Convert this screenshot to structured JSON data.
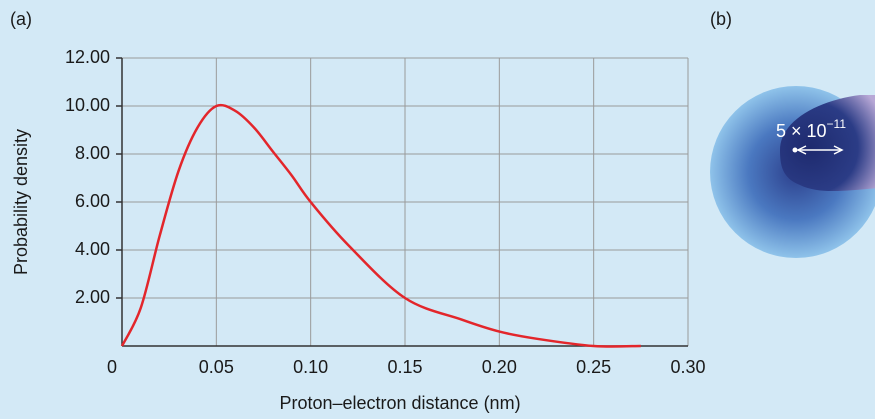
{
  "chart_data": {
    "type": "line",
    "panel_label": "(a)",
    "xlabel": "Proton–electron distance (nm)",
    "ylabel": "Probability density",
    "x": [
      0,
      0.01,
      0.02,
      0.03,
      0.04,
      0.05,
      0.06,
      0.07,
      0.08,
      0.09,
      0.1,
      0.12,
      0.15,
      0.18,
      0.2,
      0.22,
      0.25,
      0.275
    ],
    "series": [
      {
        "color": "#e3262b",
        "values": [
          0,
          1.6,
          4.6,
          7.3,
          9.1,
          10.0,
          9.8,
          9.1,
          8.1,
          7.1,
          6.0,
          4.2,
          2.0,
          1.1,
          0.6,
          0.3,
          0.0,
          0.0
        ]
      }
    ],
    "xlim": [
      0,
      0.3
    ],
    "ylim": [
      0,
      12
    ],
    "xticks": [
      0,
      0.05,
      {
        "value": 0.1,
        "label": "0.10"
      },
      0.15,
      {
        "value": 0.2,
        "label": "0.20"
      },
      0.25,
      {
        "value": 0.3,
        "label": "0.30"
      }
    ],
    "yticks": [
      {
        "value": 2,
        "label": "2.00"
      },
      {
        "value": 4,
        "label": "4.00"
      },
      {
        "value": 6,
        "label": "6.00"
      },
      {
        "value": 8,
        "label": "8.00"
      },
      {
        "value": 10,
        "label": "10.00"
      },
      {
        "value": 12,
        "label": "12.00"
      }
    ],
    "grid": true
  },
  "figure_b": {
    "panel_label": "(b)",
    "radius_base": "5 × 10",
    "radius_exponent": "−11"
  }
}
